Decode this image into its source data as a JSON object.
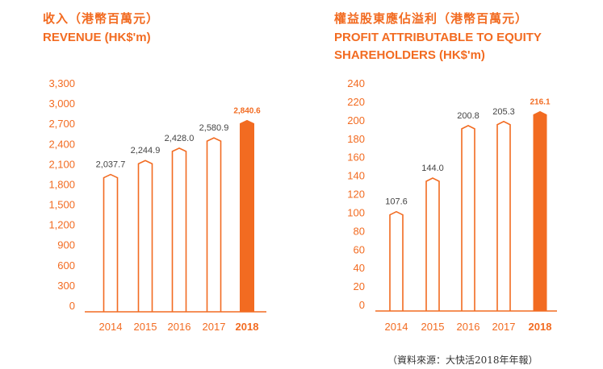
{
  "colors": {
    "accent": "#f26b21",
    "axis_text": "#f26b21",
    "value_text": "#444444"
  },
  "left": {
    "title_zh": "收入（港幣百萬元）",
    "title_en": "REVENUE (HK$'m)"
  },
  "right": {
    "title_zh": "權益股東應佔溢利（港幣百萬元）",
    "title_en_line1": "PROFIT ATTRIBUTABLE TO EQUITY",
    "title_en_line2": "SHAREHOLDERS (HK$'m)"
  },
  "source": "（資料來源：大快活2018年年報）",
  "chart_data": [
    {
      "type": "bar",
      "title": "收入（港幣百萬元） REVENUE (HK$'m)",
      "categories": [
        "2014",
        "2015",
        "2016",
        "2017",
        "2018"
      ],
      "values": [
        2037.7,
        2244.9,
        2428.0,
        2580.9,
        2840.6
      ],
      "value_labels": [
        "2,037.7",
        "2,244.9",
        "2,428.0",
        "2,580.9",
        "2,840.6"
      ],
      "yticks": [
        "0",
        "300",
        "600",
        "900",
        "1,200",
        "1,500",
        "1,800",
        "2,100",
        "2,400",
        "2,700",
        "3,000",
        "3,300"
      ],
      "ylim": [
        0,
        3300
      ],
      "highlight": "2018",
      "grid": false
    },
    {
      "type": "bar",
      "title": "權益股東應佔溢利（港幣百萬元） PROFIT ATTRIBUTABLE TO EQUITY SHAREHOLDERS (HK$'m)",
      "categories": [
        "2014",
        "2015",
        "2016",
        "2017",
        "2018"
      ],
      "values": [
        107.6,
        144.0,
        200.8,
        205.3,
        216.1
      ],
      "value_labels": [
        "107.6",
        "144.0",
        "200.8",
        "205.3",
        "216.1"
      ],
      "yticks": [
        "0",
        "20",
        "40",
        "60",
        "80",
        "100",
        "120",
        "140",
        "160",
        "180",
        "200",
        "220",
        "240"
      ],
      "ylim": [
        0,
        240
      ],
      "highlight": "2018",
      "grid": false
    }
  ]
}
